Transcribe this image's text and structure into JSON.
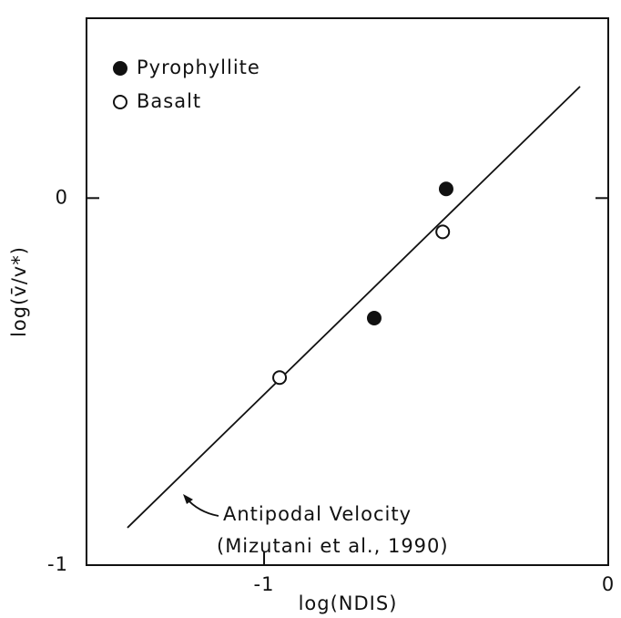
{
  "chart_data": {
    "type": "scatter",
    "xlabel": "log(NDIS)",
    "ylabel": "log(v̄/v*)",
    "xlim": [
      -1.516,
      0
    ],
    "ylim": [
      -1,
      0.49
    ],
    "xticks": [
      -1,
      0
    ],
    "yticks": [
      -1,
      0
    ],
    "series": [
      {
        "name": "Pyrophyllite",
        "color": "#111",
        "marker": "filled",
        "x": [
          -0.471,
          -0.68
        ],
        "values": [
          0.025,
          -0.327
        ]
      },
      {
        "name": "Basalt",
        "color": "#111",
        "marker": "open",
        "x": [
          -0.955,
          -0.481
        ],
        "values": [
          -0.489,
          -0.092
        ]
      }
    ],
    "reference_line": {
      "x": [
        -1.397,
        -0.082
      ],
      "values": [
        -0.898,
        0.304
      ]
    },
    "annotation": [
      "Antipodal Velocity",
      "(Mizutani et al., 1990)"
    ]
  }
}
